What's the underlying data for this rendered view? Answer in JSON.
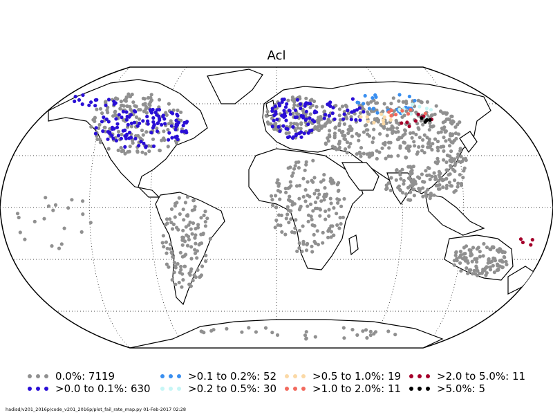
{
  "title": "Acl",
  "legend": [
    {
      "label": "0.0%: 7119",
      "color": "#909090"
    },
    {
      "label": ">0.0 to 0.1%: 630",
      "color": "#2a0fd6"
    },
    {
      "label": ">0.1 to 0.2%: 52",
      "color": "#3a8ff0"
    },
    {
      "label": ">0.2 to 0.5%: 30",
      "color": "#c6f6f6"
    },
    {
      "label": ">0.5 to 1.0%: 19",
      "color": "#fbd9a6"
    },
    {
      "label": ">1.0 to 2.0%: 11",
      "color": "#f26a5e"
    },
    {
      "label": ">2.0 to 5.0%: 11",
      "color": "#a5002b"
    },
    {
      "label": ">5.0%: 5",
      "color": "#000000"
    }
  ],
  "footer": "hadisd/v201_2016p/code_v201_2016p/plot_fail_rate_map.py   01-Feb-2017 02:28",
  "map": {
    "projection": "Robinson",
    "gridlines": "dotted",
    "ocean_color": "#ffffff",
    "coast_color": "#000000"
  }
}
